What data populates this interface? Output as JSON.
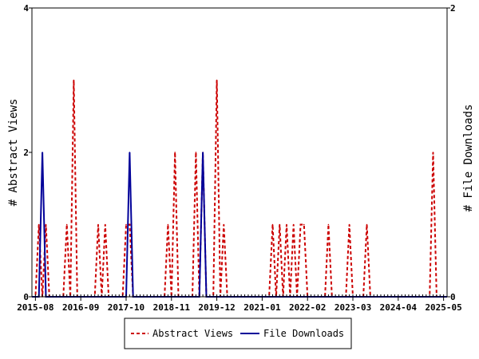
{
  "chart_data": {
    "type": "line",
    "title": "",
    "xlabel": "",
    "ylabel_left": "# Abstract Views",
    "ylabel_right": "# File Downloads",
    "x_range": [
      "2015-07-01",
      "2025-06-01"
    ],
    "x_ticks": [
      "2015-08",
      "2016-09",
      "2017-10",
      "2018-11",
      "2019-12",
      "2021-01",
      "2022-02",
      "2023-03",
      "2024-04",
      "2025-05"
    ],
    "y_left_range": [
      0,
      4
    ],
    "y_left_ticks": [
      "0",
      "2",
      "4"
    ],
    "y_right_range": [
      0,
      2
    ],
    "y_right_ticks": [
      "0",
      "2"
    ],
    "grid": false,
    "legend_position": "bottom",
    "series": [
      {
        "name": "Abstract Views",
        "axis": "left",
        "color": "#cc0000",
        "dash": true,
        "points": [
          [
            "2015-08",
            0
          ],
          [
            "2015-09",
            1
          ],
          [
            "2015-10",
            0
          ],
          [
            "2015-11",
            1
          ],
          [
            "2015-12",
            0
          ],
          [
            "2016-04",
            0
          ],
          [
            "2016-05",
            1
          ],
          [
            "2016-06",
            0
          ],
          [
            "2016-07",
            3
          ],
          [
            "2016-08",
            0
          ],
          [
            "2017-01",
            0
          ],
          [
            "2017-02",
            1
          ],
          [
            "2017-03",
            0
          ],
          [
            "2017-04",
            1
          ],
          [
            "2017-05",
            0
          ],
          [
            "2017-09",
            0
          ],
          [
            "2017-10",
            1
          ],
          [
            "2017-11",
            1
          ],
          [
            "2017-12",
            0
          ],
          [
            "2018-09",
            0
          ],
          [
            "2018-10",
            1
          ],
          [
            "2018-11",
            0
          ],
          [
            "2018-12",
            2
          ],
          [
            "2019-01",
            0
          ],
          [
            "2019-05",
            0
          ],
          [
            "2019-06",
            2
          ],
          [
            "2019-07",
            0
          ],
          [
            "2019-08",
            2
          ],
          [
            "2019-09",
            0
          ],
          [
            "2019-11",
            0
          ],
          [
            "2019-12",
            3
          ],
          [
            "2020-01",
            0
          ],
          [
            "2020-02",
            1
          ],
          [
            "2020-03",
            0
          ],
          [
            "2021-03",
            0
          ],
          [
            "2021-04",
            1
          ],
          [
            "2021-05",
            0
          ],
          [
            "2021-06",
            1
          ],
          [
            "2021-07",
            0
          ],
          [
            "2021-08",
            1
          ],
          [
            "2021-09",
            0
          ],
          [
            "2021-10",
            1
          ],
          [
            "2021-11",
            0
          ],
          [
            "2021-12",
            1
          ],
          [
            "2022-01",
            1
          ],
          [
            "2022-02",
            0
          ],
          [
            "2022-07",
            0
          ],
          [
            "2022-08",
            1
          ],
          [
            "2022-09",
            0
          ],
          [
            "2023-01",
            0
          ],
          [
            "2023-02",
            1
          ],
          [
            "2023-03",
            0
          ],
          [
            "2023-06",
            0
          ],
          [
            "2023-07",
            1
          ],
          [
            "2023-08",
            0
          ],
          [
            "2025-01",
            0
          ],
          [
            "2025-02",
            2
          ],
          [
            "2025-03",
            0
          ]
        ]
      },
      {
        "name": "File Downloads",
        "axis": "right",
        "color": "#000099",
        "dash": false,
        "points": [
          [
            "2015-08",
            0
          ],
          [
            "2015-09",
            0
          ],
          [
            "2015-10",
            1
          ],
          [
            "2015-11",
            0
          ],
          [
            "2017-09",
            0
          ],
          [
            "2017-10",
            0
          ],
          [
            "2017-11",
            1
          ],
          [
            "2017-12",
            0
          ],
          [
            "2019-06",
            0
          ],
          [
            "2019-07",
            0
          ],
          [
            "2019-08",
            1
          ],
          [
            "2019-09",
            0
          ]
        ]
      }
    ]
  }
}
